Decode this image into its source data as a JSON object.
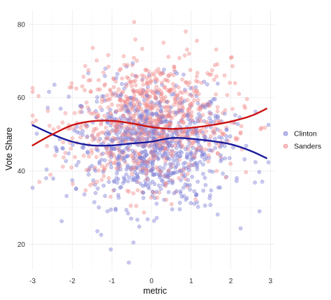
{
  "chart_data": {
    "type": "scatter",
    "title": "",
    "xlabel": "metric",
    "ylabel": "Vote Share",
    "xlim": [
      -3.1,
      3.1
    ],
    "ylim": [
      13,
      84
    ],
    "xticks": [
      -3,
      -2,
      -1,
      0,
      1,
      2,
      3
    ],
    "xtick_labels": [
      "-3",
      "-2",
      "-1",
      "0",
      "1",
      "2",
      "3"
    ],
    "yticks": [
      20,
      40,
      60,
      80
    ],
    "ytick_labels": [
      "20",
      "40",
      "60",
      "80"
    ],
    "grid": true,
    "legend_position": "right",
    "point_count_per_series": 850,
    "series": [
      {
        "name": "Clinton",
        "color": "#1a1a9c",
        "point_color": "#7f7fd6",
        "points": "scatter cloud, x roughly normal around 0 (sd ~1.0, range -3 to 3), y roughly normal around 47 (sd ~9, range ~17 to 76)",
        "trend": {
          "x": [
            -3.0,
            -2.5,
            -2.0,
            -1.5,
            -1.0,
            -0.5,
            0.0,
            0.5,
            1.0,
            1.5,
            2.0,
            2.5,
            2.9
          ],
          "y": [
            52.5,
            50.0,
            48.0,
            47.0,
            47.0,
            47.5,
            48.0,
            49.0,
            48.8,
            48.2,
            47.3,
            45.5,
            43.5
          ]
        }
      },
      {
        "name": "Sanders",
        "color": "#cc1111",
        "point_color": "#f08a8a",
        "points": "scatter cloud, x roughly normal around 0 (sd ~1.0, range -3 to 3), y roughly normal around 53 (sd ~9, range ~24 to 83)",
        "trend": {
          "x": [
            -3.0,
            -2.5,
            -2.0,
            -1.5,
            -1.0,
            -0.5,
            0.0,
            0.5,
            1.0,
            1.5,
            2.0,
            2.5,
            2.9
          ],
          "y": [
            47.0,
            50.0,
            52.5,
            53.6,
            53.7,
            53.0,
            52.0,
            51.5,
            51.8,
            52.5,
            53.5,
            55.0,
            57.0
          ]
        }
      }
    ]
  }
}
